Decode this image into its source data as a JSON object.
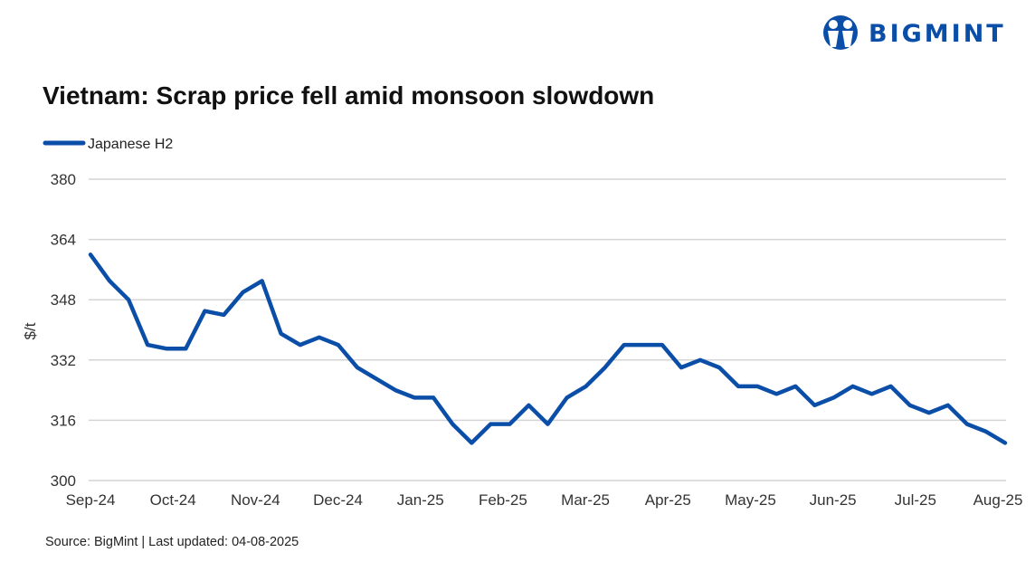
{
  "logo": {
    "text": "BIGMINT",
    "color": "#0a4ea8"
  },
  "chart_data": {
    "type": "line",
    "title": "Vietnam: Scrap price fell amid monsoon slowdown",
    "ylabel": "$/t",
    "xlabel": "",
    "ylim": [
      300,
      380
    ],
    "yticks": [
      300,
      316,
      332,
      348,
      364,
      380
    ],
    "xtick_labels": [
      "Sep-24",
      "Oct-24",
      "Nov-24",
      "Dec-24",
      "Jan-25",
      "Feb-25",
      "Mar-25",
      "Apr-25",
      "May-25",
      "Jun-25",
      "Jul-25",
      "Aug-25"
    ],
    "grid": true,
    "legend_position": "top-left",
    "series": [
      {
        "name": "Japanese H2",
        "color": "#0a4ea8",
        "values": [
          360,
          353,
          348,
          336,
          335,
          335,
          345,
          344,
          350,
          353,
          339,
          336,
          338,
          336,
          330,
          327,
          324,
          322,
          322,
          315,
          310,
          315,
          315,
          320,
          315,
          322,
          325,
          330,
          336,
          336,
          336,
          330,
          332,
          330,
          325,
          325,
          323,
          325,
          320,
          322,
          325,
          323,
          325,
          320,
          318,
          320,
          315,
          313,
          310
        ]
      }
    ]
  },
  "source": "Source: BigMint | Last updated: 04-08-2025"
}
